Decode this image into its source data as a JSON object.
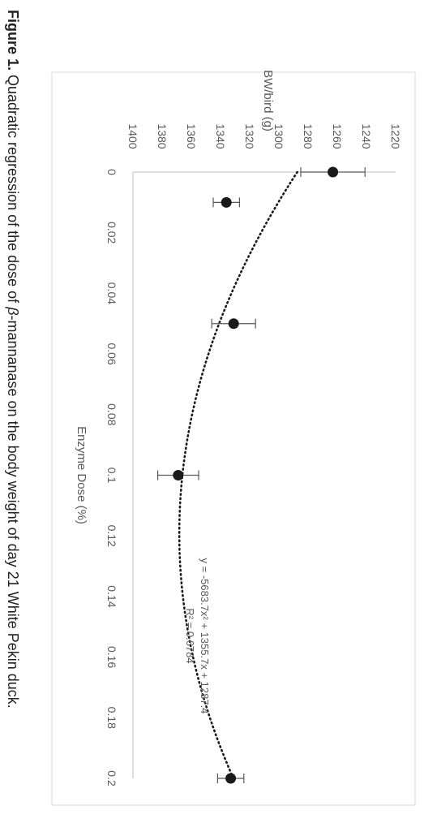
{
  "figure": {
    "caption_label": "Figure 1.",
    "caption_parts": [
      {
        "text": " Quadratic regression of the dose of ",
        "italic": false
      },
      {
        "text": "β",
        "italic": true
      },
      {
        "text": "-mannanase on the body weight of day 21 White Pekin duck.",
        "italic": false
      }
    ]
  },
  "chart_data": {
    "type": "scatter",
    "orientation": "rotated-90-clockwise",
    "title": "",
    "xlabel": "Enzyme Dose (%)",
    "ylabel": "BW/bird (g)",
    "xlim": [
      0,
      0.2
    ],
    "ylim": [
      1220,
      1400
    ],
    "x_ticks": [
      "0",
      "0.02",
      "0.04",
      "0.06",
      "0.08",
      "0.1",
      "0.12",
      "0.14",
      "0.16",
      "0.18",
      "0.2"
    ],
    "y_ticks": [
      "1220",
      "1240",
      "1260",
      "1280",
      "1300",
      "1320",
      "1340",
      "1360",
      "1380",
      "1400"
    ],
    "grid": false,
    "series": [
      {
        "x": [
          0,
          0.01,
          0.05,
          0.1,
          0.2
        ],
        "y": [
          1263,
          1336,
          1331,
          1369,
          1333
        ],
        "error": [
          22,
          9,
          15,
          14,
          9
        ],
        "color": "#1a1a1a"
      }
    ],
    "trendline": {
      "type": "polynomial-2",
      "coefficients": [
        -5683.7,
        1355.7,
        1287.4
      ],
      "equation_label": "y = -5683.7x² + 1355.7x + 1287.4",
      "r2_label": "R² = 0.6784",
      "style": "dotted",
      "color": "#1a1a1a"
    }
  }
}
